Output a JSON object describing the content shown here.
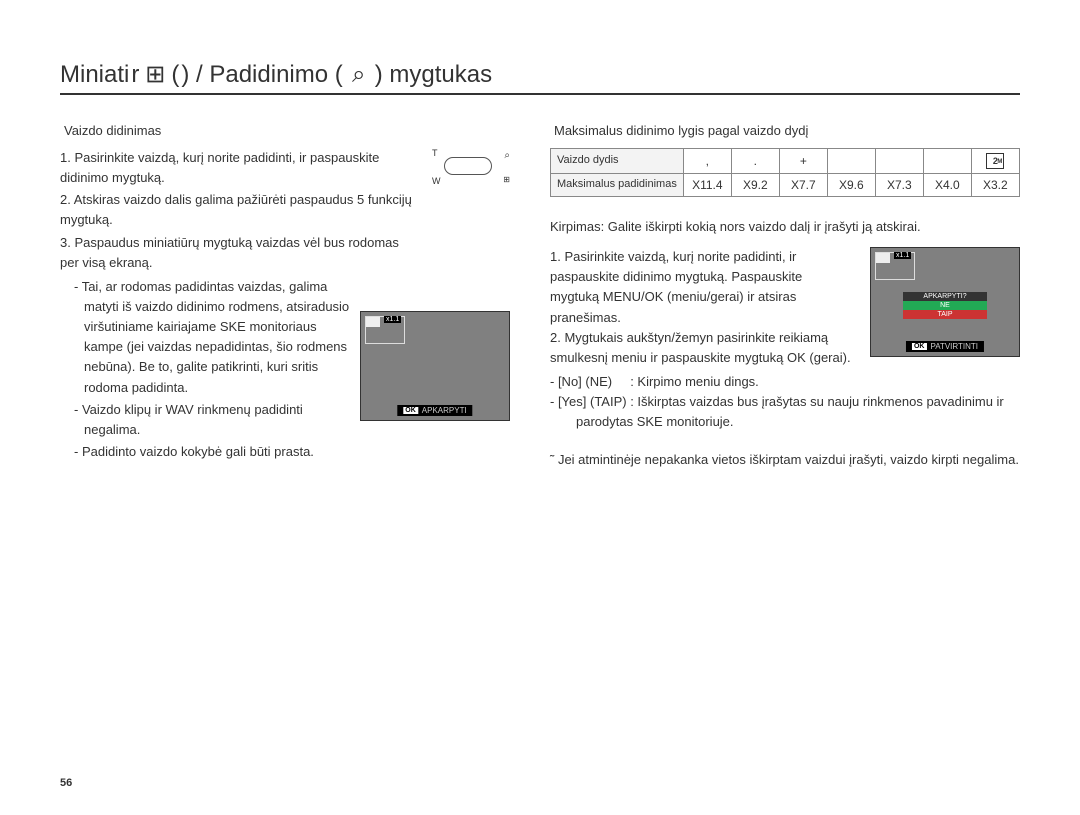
{
  "title": {
    "part1": "Miniati",
    "part2": "r",
    "part3": "(",
    "part4": ") / Padidinimo (",
    "part5": ") mygtukas"
  },
  "left": {
    "heading": "Vaizdo didinimas",
    "step1": "1. Pasirinkite vaizdą, kurį norite padidinti, ir paspauskite didinimo mygtuką.",
    "step2": "2. Atskiras vaizdo dalis galima pažiūrėti paspaudus 5 funkcijų mygtuką.",
    "step3": "3. Paspaudus miniatiūrų mygtuką vaizdas vėl bus rodomas per visą ekraną.",
    "bullet1": "- Tai, ar rodomas padidintas vaizdas, galima matyti iš vaizdo didinimo rodmens, atsiradusio viršutiniame kairiajame SKE monitoriaus kampe (jei vaizdas nepadidintas, šio rodmens nebūna). Be to, galite patikrinti, kuri sritis rodoma padidinta.",
    "bullet2": "- Vaizdo klipų ir WAV rinkmenų padidinti negalima.",
    "bullet3": "- Padidinto vaizdo kokybė gali būti prasta.",
    "t_label": "T",
    "w_label": "W",
    "mag_label": "⌕",
    "grid_label": "⊞",
    "preview": {
      "zoom": "x1.1",
      "ok": "OK",
      "action": "APKARPYTI"
    }
  },
  "right": {
    "heading": "Maksimalus didinimo lygis pagal vaizdo dydį",
    "table": {
      "row1_label": "Vaizdo dydis",
      "row2_label": "Maksimalus padidinimas",
      "sizes": [
        ",",
        ".",
        "+",
        "",
        "",
        "",
        ""
      ],
      "twoM": "2",
      "zooms": [
        "X11.4",
        "X9.2",
        "X7.7",
        "X9.6",
        "X7.3",
        "X4.0",
        "X3.2"
      ]
    },
    "crop_intro": "Kirpimas: Galite iškirpti kokią nors vaizdo dalį ir įrašyti ją atskirai.",
    "crop_step1": "1. Pasirinkite vaizdą, kurį norite padidinti, ir paspauskite didinimo mygtuką. Paspauskite mygtuką MENU/OK (meniu/gerai) ir atsiras pranešimas.",
    "crop_step2": "2. Mygtukais aukštyn/žemyn pasirinkite reikiamą smulkesnį meniu ir paspauskite mygtuką OK (gerai).",
    "opt_no_label": "- [No] (NE)",
    "opt_no_desc": ": Kirpimo meniu dings.",
    "opt_yes_label": "- [Yes] (TAIP)",
    "opt_yes_desc": ": Iškirptas vaizdas bus įrašytas su nauju rinkmenos pavadinimu ir parodytas SKE monitoriuje.",
    "preview": {
      "zoom": "x1.1",
      "menu_q": "APKARPYTI?",
      "menu_ne": "NE",
      "menu_taip": "TAIP",
      "ok": "OK",
      "action": "PATVIRTINTI"
    },
    "note": "˜ Jei atmintinėje nepakanka vietos iškirptam vaizdui įrašyti, vaizdo kirpti negalima."
  },
  "page": "56"
}
